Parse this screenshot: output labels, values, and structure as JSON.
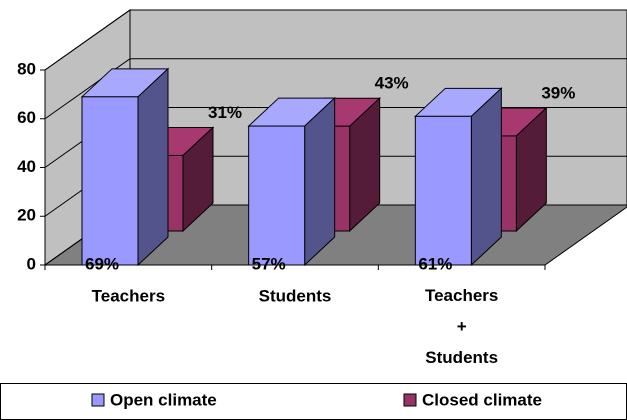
{
  "chart_data": {
    "type": "bar3d",
    "categories": [
      "Teachers",
      "Students",
      "Teachers + Students"
    ],
    "series": [
      {
        "name": "Open climate",
        "color": "#9999ff",
        "values": [
          69,
          57,
          61
        ],
        "value_labels": [
          "69%",
          "57%",
          "61%"
        ]
      },
      {
        "name": "Closed climate",
        "color": "#993366",
        "values": [
          31,
          43,
          39
        ],
        "value_labels": [
          "31%",
          "43%",
          "39%"
        ]
      }
    ],
    "ylim": [
      0,
      80
    ],
    "yticks": [
      0,
      20,
      40,
      60,
      80
    ],
    "grid": true,
    "legend": "bottom"
  }
}
